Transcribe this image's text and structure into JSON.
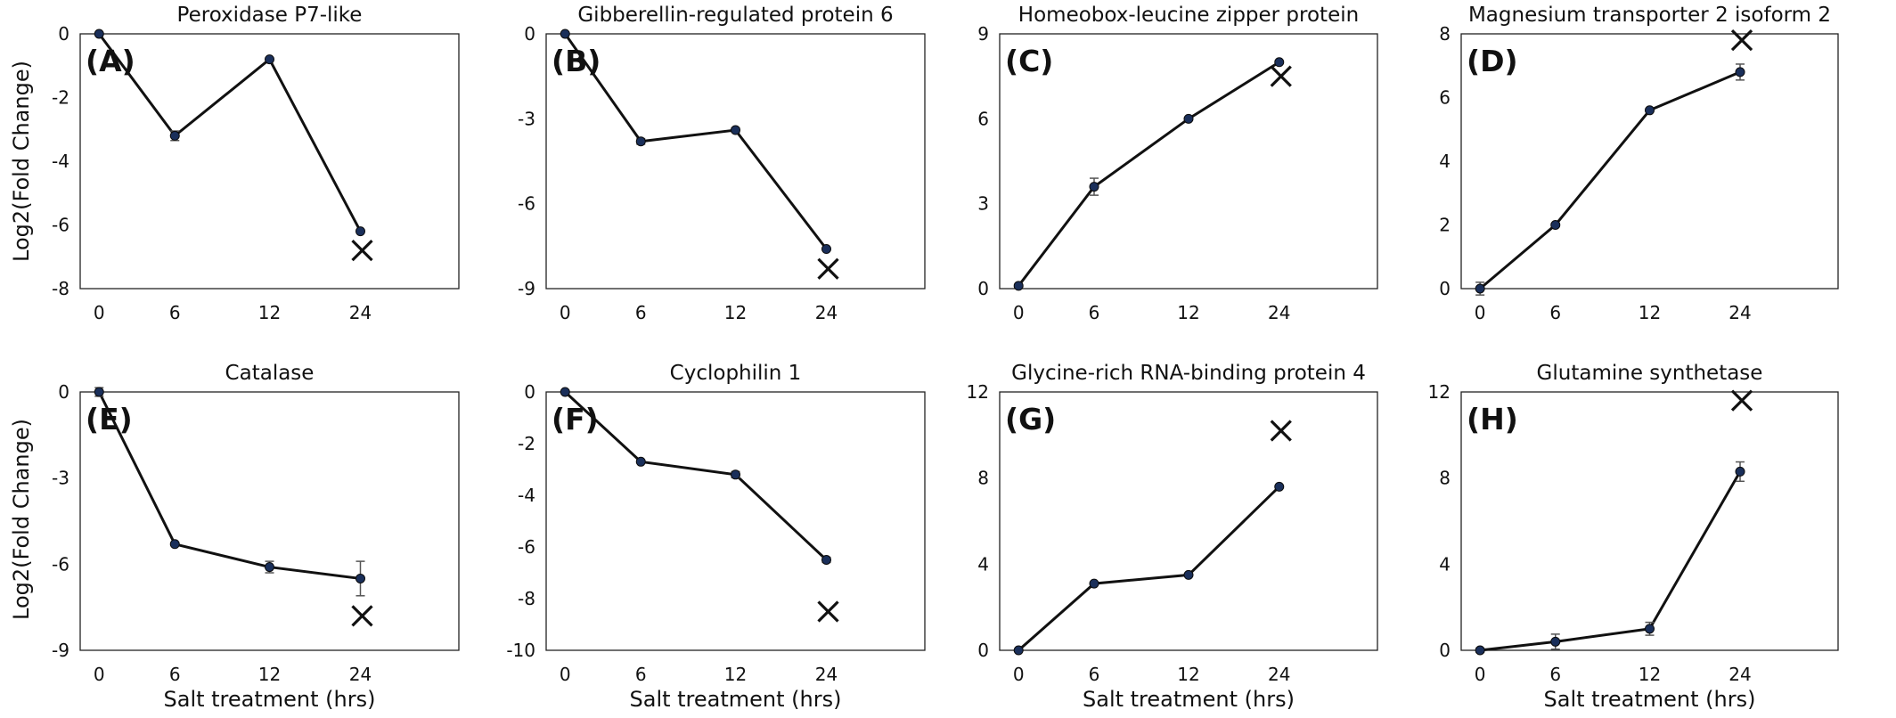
{
  "figure": {
    "ylabel": "Log2(Fold Change)",
    "xlabel": "Salt treatment (hrs)"
  },
  "chart_data": [
    {
      "type": "line",
      "panel": "(A)",
      "title": "Peroxidase P7-like",
      "categories": [
        "0",
        "6",
        "12",
        "24"
      ],
      "values": [
        0,
        -3.2,
        -0.8,
        -6.2
      ],
      "errors": [
        0,
        0.15,
        0.05,
        0.05
      ],
      "marker_x": "24",
      "marker_x_value": -6.8,
      "ylim": [
        -8,
        0
      ],
      "yticks": [
        "0",
        "-2",
        "-4",
        "-6",
        "-8"
      ]
    },
    {
      "type": "line",
      "panel": "(B)",
      "title": "Gibberellin-regulated protein 6",
      "categories": [
        "0",
        "6",
        "12",
        "24"
      ],
      "values": [
        0,
        -3.8,
        -3.4,
        -7.6
      ],
      "errors": [
        0,
        0.1,
        0.08,
        0.05
      ],
      "marker_x": "24",
      "marker_x_value": -8.3,
      "ylim": [
        -9,
        0
      ],
      "yticks": [
        "0",
        "-3",
        "-6",
        "-9"
      ]
    },
    {
      "type": "line",
      "panel": "(C)",
      "title": "Homeobox-leucine zipper protein",
      "categories": [
        "0",
        "6",
        "12",
        "24"
      ],
      "values": [
        0.1,
        3.6,
        6.0,
        8.0
      ],
      "errors": [
        0,
        0.3,
        0.05,
        0.05
      ],
      "marker_x": "24",
      "marker_x_value": 7.5,
      "ylim": [
        0,
        9
      ],
      "yticks": [
        "0",
        "3",
        "6",
        "9"
      ]
    },
    {
      "type": "line",
      "panel": "(D)",
      "title": "Magnesium transporter 2 isoform 2",
      "categories": [
        "0",
        "6",
        "12",
        "24"
      ],
      "values": [
        0,
        2.0,
        5.6,
        6.8
      ],
      "errors": [
        0.2,
        0.05,
        0.05,
        0.25
      ],
      "marker_x": "24",
      "marker_x_value": 7.8,
      "ylim": [
        0,
        8
      ],
      "yticks": [
        "0",
        "2",
        "4",
        "6",
        "8"
      ]
    },
    {
      "type": "line",
      "panel": "(E)",
      "title": "Catalase",
      "categories": [
        "0",
        "6",
        "12",
        "24"
      ],
      "values": [
        0,
        -5.3,
        -6.1,
        -6.5
      ],
      "errors": [
        0.15,
        0.05,
        0.2,
        0.6
      ],
      "marker_x": "24",
      "marker_x_value": -7.8,
      "ylim": [
        -9,
        0
      ],
      "yticks": [
        "0",
        "-3",
        "-6",
        "-9"
      ]
    },
    {
      "type": "line",
      "panel": "(F)",
      "title": "Cyclophilin 1",
      "categories": [
        "0",
        "6",
        "12",
        "24"
      ],
      "values": [
        0,
        -2.7,
        -3.2,
        -6.5
      ],
      "errors": [
        0,
        0.05,
        0.12,
        0.1
      ],
      "marker_x": "24",
      "marker_x_value": -8.5,
      "ylim": [
        -10,
        0
      ],
      "yticks": [
        "0",
        "-2",
        "-4",
        "-6",
        "-8",
        "-10"
      ]
    },
    {
      "type": "line",
      "panel": "(G)",
      "title": "Glycine-rich RNA-binding protein 4",
      "categories": [
        "0",
        "6",
        "12",
        "24"
      ],
      "values": [
        0,
        3.1,
        3.5,
        7.6
      ],
      "errors": [
        0,
        0.05,
        0.05,
        0.05
      ],
      "marker_x": "24",
      "marker_x_value": 10.2,
      "ylim": [
        0,
        12
      ],
      "yticks": [
        "0",
        "4",
        "8",
        "12"
      ]
    },
    {
      "type": "line",
      "panel": "(H)",
      "title": "Glutamine synthetase",
      "categories": [
        "0",
        "6",
        "12",
        "24"
      ],
      "values": [
        0,
        0.4,
        1.0,
        8.3
      ],
      "errors": [
        0.1,
        0.35,
        0.3,
        0.45
      ],
      "marker_x": "24",
      "marker_x_value": 11.6,
      "ylim": [
        0,
        12
      ],
      "yticks": [
        "0",
        "4",
        "8",
        "12"
      ]
    }
  ]
}
